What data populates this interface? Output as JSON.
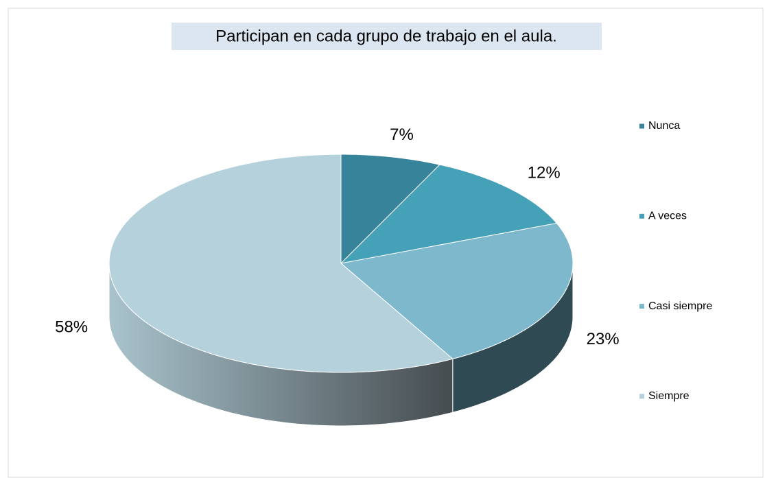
{
  "chart_data": {
    "type": "pie3d",
    "title": "Participan en cada grupo de trabajo en el aula.",
    "categories": [
      "Nunca",
      "A veces",
      "Casi siempre",
      "Siempre"
    ],
    "values": [
      7,
      12,
      23,
      58
    ],
    "value_labels": [
      "7%",
      "12%",
      "23%",
      "58%"
    ],
    "colors": [
      "#37849a",
      "#45a1b8",
      "#7db8cc",
      "#b5d1dc"
    ],
    "legend": "right"
  }
}
